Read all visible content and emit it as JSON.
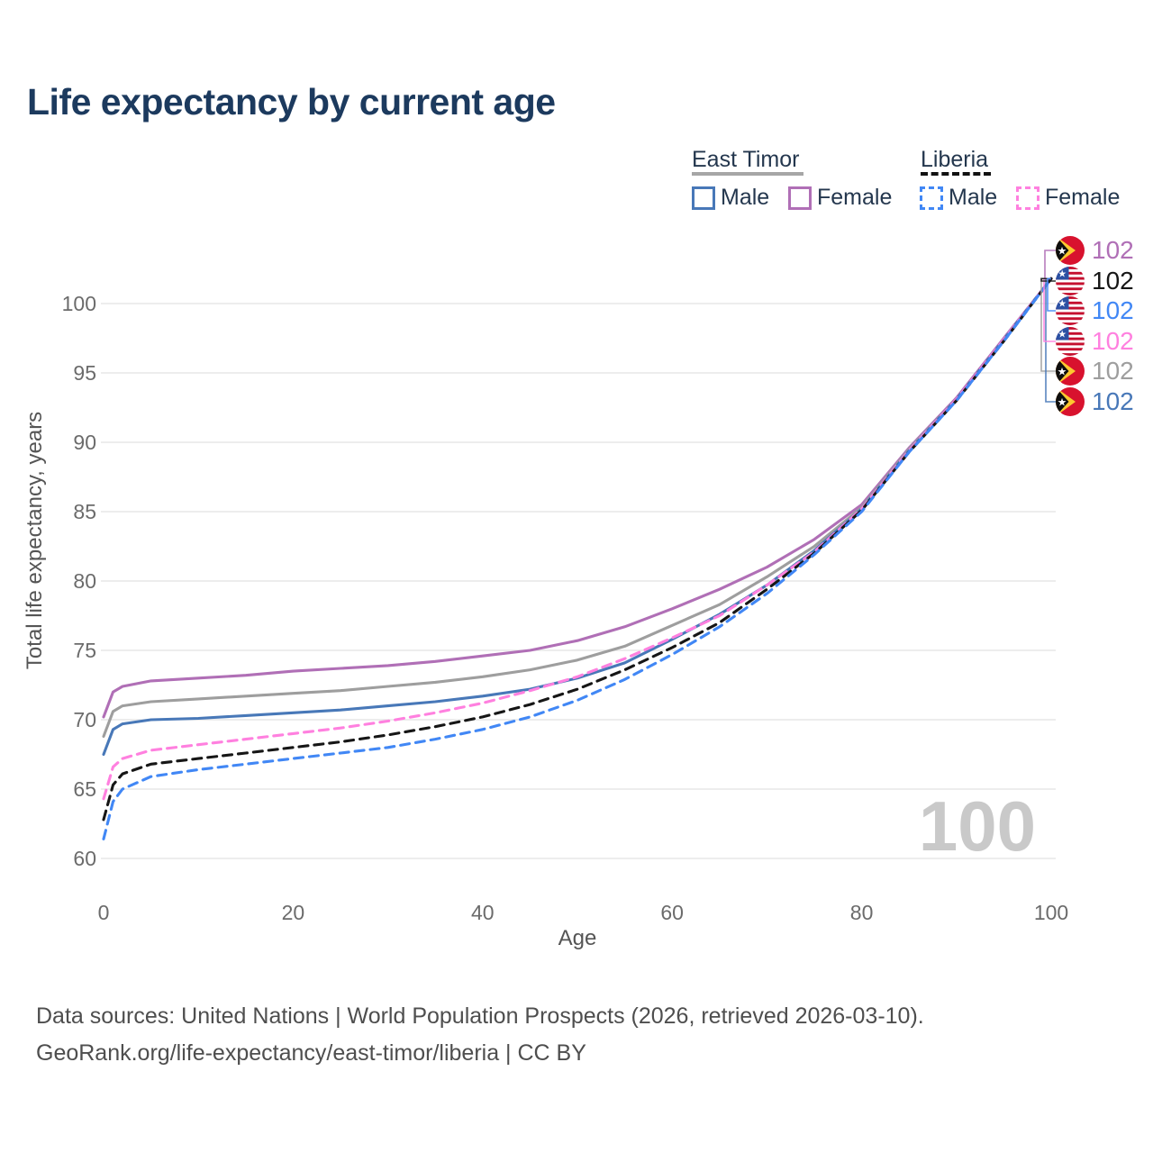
{
  "title": "Life expectancy by current age",
  "watermark": "100",
  "legend": {
    "groups": [
      {
        "label": "East Timor",
        "underline": {
          "color": "#a6a6a6",
          "style": "solid"
        },
        "items": [
          {
            "label": "Male",
            "color": "#4878b8",
            "dash": false
          },
          {
            "label": "Female",
            "color": "#b06fb6",
            "dash": false
          }
        ]
      },
      {
        "label": "Liberia",
        "underline": {
          "color": "#111111",
          "style": "dashed"
        },
        "items": [
          {
            "label": "Male",
            "color": "#4187f5",
            "dash": true
          },
          {
            "label": "Female",
            "color": "#ff80df",
            "dash": true
          }
        ]
      }
    ]
  },
  "footer": {
    "line1": "Data sources: United Nations | World Population Prospects (2026, retrieved 2026-03-10).",
    "line2": "GeoRank.org/life-expectancy/east-timor/liberia | CC BY"
  },
  "chart_data": {
    "type": "line",
    "title": "Life expectancy by current age",
    "xlabel": "Age",
    "ylabel": "Total life expectancy, years",
    "xlim": [
      0,
      100
    ],
    "ylim": [
      60,
      102.5
    ],
    "xticks": [
      0,
      20,
      40,
      60,
      80,
      100
    ],
    "yticks": [
      60,
      65,
      70,
      75,
      80,
      85,
      90,
      95,
      100
    ],
    "grid": "horizontal-only",
    "legend_position": "top-right",
    "ages": [
      0,
      1,
      2,
      5,
      10,
      15,
      20,
      25,
      30,
      35,
      40,
      45,
      50,
      55,
      60,
      65,
      70,
      75,
      80,
      85,
      90,
      95,
      100
    ],
    "series": [
      {
        "name": "East Timor Female",
        "country": "East Timor",
        "sex": "Female",
        "color": "#b06fb6",
        "dash": false,
        "flag": "east-timor",
        "end_label": "102",
        "label_row": 0,
        "values": [
          70.2,
          72.0,
          72.4,
          72.8,
          73.0,
          73.2,
          73.5,
          73.7,
          73.9,
          74.2,
          74.6,
          75.0,
          75.7,
          76.7,
          78.0,
          79.4,
          81.0,
          83.0,
          85.5,
          89.6,
          93.2,
          97.5,
          101.8
        ]
      },
      {
        "name": "East Timor Both",
        "country": "East Timor",
        "sex": "Both",
        "color": "#9e9e9e",
        "dash": false,
        "flag": "east-timor",
        "end_label": "102",
        "label_row": 4,
        "values": [
          68.8,
          70.6,
          71.0,
          71.3,
          71.5,
          71.7,
          71.9,
          72.1,
          72.4,
          72.7,
          73.1,
          73.6,
          74.3,
          75.3,
          76.8,
          78.3,
          80.3,
          82.5,
          85.3,
          89.5,
          93.1,
          97.4,
          101.8
        ]
      },
      {
        "name": "East Timor Male",
        "country": "East Timor",
        "sex": "Male",
        "color": "#4878b8",
        "dash": false,
        "flag": "east-timor",
        "end_label": "102",
        "label_row": 5,
        "values": [
          67.5,
          69.3,
          69.7,
          70.0,
          70.1,
          70.3,
          70.5,
          70.7,
          71.0,
          71.3,
          71.7,
          72.2,
          73.0,
          74.1,
          75.8,
          77.6,
          79.7,
          82.2,
          85.2,
          89.4,
          93.1,
          97.4,
          101.8
        ]
      },
      {
        "name": "Liberia Female",
        "country": "Liberia",
        "sex": "Female",
        "color": "#ff80df",
        "dash": true,
        "flag": "liberia",
        "end_label": "102",
        "label_row": 3,
        "values": [
          64.3,
          66.6,
          67.2,
          67.8,
          68.2,
          68.6,
          69.0,
          69.4,
          69.9,
          70.5,
          71.2,
          72.1,
          73.1,
          74.4,
          75.9,
          77.5,
          79.7,
          82.1,
          85.2,
          89.4,
          93.1,
          97.4,
          101.8
        ]
      },
      {
        "name": "Liberia Both",
        "country": "Liberia",
        "sex": "Both",
        "color": "#161616",
        "dash": true,
        "flag": "liberia",
        "end_label": "102",
        "label_row": 1,
        "values": [
          62.8,
          65.3,
          66.1,
          66.8,
          67.2,
          67.6,
          68.0,
          68.4,
          68.9,
          69.5,
          70.2,
          71.1,
          72.2,
          73.6,
          75.2,
          77.0,
          79.4,
          82.0,
          85.1,
          89.3,
          93.0,
          97.3,
          101.8
        ]
      },
      {
        "name": "Liberia Male",
        "country": "Liberia",
        "sex": "Male",
        "color": "#4187f5",
        "dash": true,
        "flag": "liberia",
        "end_label": "102",
        "label_row": 2,
        "values": [
          61.4,
          64.1,
          65.0,
          65.9,
          66.4,
          66.8,
          67.2,
          67.6,
          68.0,
          68.6,
          69.3,
          70.2,
          71.4,
          72.9,
          74.7,
          76.7,
          79.1,
          81.9,
          85.0,
          89.3,
          93.0,
          97.3,
          101.8
        ]
      }
    ]
  }
}
